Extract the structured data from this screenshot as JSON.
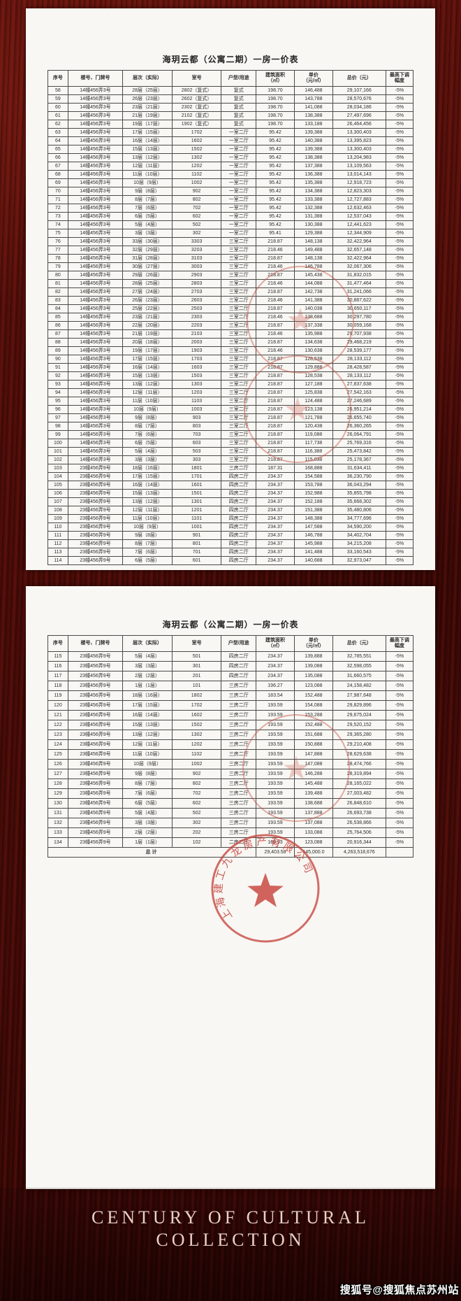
{
  "page1": {
    "title": "海玥云都（公寓二期）一房一价表",
    "columns": [
      "序号",
      "楼号、门牌号",
      "层次（实际）",
      "室号",
      "户型/用途",
      "建筑面积\n（㎡）",
      "单价\n（元/㎡）",
      "总价（元）",
      "最高下调\n幅度"
    ],
    "rows": [
      [
        "58",
        "14幢456弄3号",
        "28层（25层）",
        "2802（复式）",
        "复式",
        "198.70",
        "146,488",
        "29,107,166",
        "-5%"
      ],
      [
        "59",
        "14幢456弄3号",
        "26层（23层）",
        "2602（复式）",
        "复式",
        "198.70",
        "143,788",
        "28,570,676",
        "-5%"
      ],
      [
        "60",
        "14幢456弄3号",
        "23层（21层）",
        "2302（复式）",
        "复式",
        "198.70",
        "141,088",
        "28,034,186",
        "-5%"
      ],
      [
        "61",
        "14幢456弄3号",
        "21层（19层）",
        "2102（复式）",
        "复式",
        "198.70",
        "138,388",
        "27,497,696",
        "-5%"
      ],
      [
        "62",
        "14幢456弄3号",
        "19层（17层）",
        "1902（复式）",
        "复式",
        "198.70",
        "133,188",
        "26,464,456",
        "-5%"
      ],
      [
        "63",
        "14幢456弄3号",
        "17层（15层）",
        "1702",
        "一室二厅",
        "95.42",
        "139,388",
        "13,300,403",
        "-5%"
      ],
      [
        "64",
        "14幢456弄3号",
        "16层（14层）",
        "1602",
        "一室二厅",
        "95.42",
        "140,388",
        "13,395,823",
        "-5%"
      ],
      [
        "65",
        "14幢456弄3号",
        "15层（13层）",
        "1502",
        "一室二厅",
        "95.42",
        "139,388",
        "13,300,403",
        "-5%"
      ],
      [
        "66",
        "14幢456弄3号",
        "13层（12层）",
        "1302",
        "一室二厅",
        "95.42",
        "138,388",
        "13,204,983",
        "-5%"
      ],
      [
        "67",
        "14幢456弄3号",
        "12层（11层）",
        "1202",
        "一室二厅",
        "95.42",
        "137,388",
        "13,109,563",
        "-5%"
      ],
      [
        "68",
        "14幢456弄3号",
        "11层（10层）",
        "1102",
        "一室二厅",
        "95.42",
        "136,388",
        "13,014,143",
        "-5%"
      ],
      [
        "69",
        "14幢456弄3号",
        "10层（9层）",
        "1002",
        "一室二厅",
        "95.42",
        "135,388",
        "12,918,723",
        "-5%"
      ],
      [
        "70",
        "14幢456弄3号",
        "9层（8层）",
        "902",
        "一室二厅",
        "95.42",
        "134,388",
        "12,823,303",
        "-5%"
      ],
      [
        "71",
        "14幢456弄3号",
        "8层（7层）",
        "802",
        "一室二厅",
        "95.42",
        "133,388",
        "12,727,883",
        "-5%"
      ],
      [
        "72",
        "14幢456弄3号",
        "7层（6层）",
        "702",
        "一室二厅",
        "95.42",
        "132,388",
        "12,632,463",
        "-5%"
      ],
      [
        "73",
        "14幢456弄3号",
        "6层（5层）",
        "602",
        "一室二厅",
        "95.42",
        "131,388",
        "12,537,043",
        "-5%"
      ],
      [
        "74",
        "14幢456弄3号",
        "5层（4层）",
        "502",
        "一室二厅",
        "95.42",
        "130,388",
        "12,441,623",
        "-5%"
      ],
      [
        "75",
        "14幢456弄3号",
        "3层（3层）",
        "302",
        "一室二厅",
        "95.41",
        "129,388",
        "12,344,909",
        "-5%"
      ],
      [
        "76",
        "14幢456弄3号",
        "33层（30层）",
        "3303",
        "三室二厅",
        "218.87",
        "148,138",
        "32,422,964",
        "-5%"
      ],
      [
        "77",
        "14幢456弄3号",
        "32层（29层）",
        "3203",
        "三室二厅",
        "218.46",
        "149,488",
        "32,657,148",
        "-5%"
      ],
      [
        "78",
        "14幢456弄3号",
        "31层（28层）",
        "3103",
        "三室二厅",
        "218.87",
        "148,138",
        "32,422,964",
        "-5%"
      ],
      [
        "79",
        "14幢456弄3号",
        "30层（27层）",
        "3003",
        "三室二厅",
        "218.46",
        "146,788",
        "32,067,306",
        "-5%"
      ],
      [
        "80",
        "14幢456弄3号",
        "29层（26层）",
        "2903",
        "三室二厅",
        "218.87",
        "145,438",
        "31,832,015",
        "-5%"
      ],
      [
        "81",
        "14幢456弄3号",
        "28层（25层）",
        "2803",
        "三室二厅",
        "218.46",
        "144,088",
        "31,477,464",
        "-5%"
      ],
      [
        "82",
        "14幢456弄3号",
        "27层（24层）",
        "2703",
        "三室二厅",
        "218.87",
        "142,738",
        "31,241,066",
        "-5%"
      ],
      [
        "83",
        "14幢456弄3号",
        "26层（23层）",
        "2603",
        "三室二厅",
        "218.46",
        "141,388",
        "30,887,622",
        "-5%"
      ],
      [
        "84",
        "14幢456弄3号",
        "25层（22层）",
        "2503",
        "三室二厅",
        "218.87",
        "140,038",
        "30,650,117",
        "-5%"
      ],
      [
        "85",
        "14幢456弄3号",
        "23层（21层）",
        "2303",
        "三室二厅",
        "218.46",
        "138,688",
        "30,297,780",
        "-5%"
      ],
      [
        "86",
        "14幢456弄3号",
        "22层（20层）",
        "2203",
        "三室二厅",
        "218.87",
        "137,338",
        "30,059,168",
        "-5%"
      ],
      [
        "87",
        "14幢456弄3号",
        "21层（19层）",
        "2103",
        "三室二厅",
        "218.46",
        "135,988",
        "29,707,938",
        "-5%"
      ],
      [
        "88",
        "14幢456弄3号",
        "20层（18层）",
        "2003",
        "三室二厅",
        "218.87",
        "134,638",
        "29,468,219",
        "-5%"
      ],
      [
        "89",
        "14幢456弄3号",
        "19层（17层）",
        "1903",
        "三室二厅",
        "218.46",
        "130,638",
        "28,539,177",
        "-5%"
      ],
      [
        "90",
        "14幢456弄3号",
        "17层（15层）",
        "1703",
        "三室二厅",
        "218.87",
        "128,538",
        "28,133,112",
        "-5%"
      ],
      [
        "91",
        "14幢456弄3号",
        "16层（14层）",
        "1603",
        "三室二厅",
        "218.87",
        "129,888",
        "28,428,587",
        "-5%"
      ],
      [
        "92",
        "14幢456弄3号",
        "15层（13层）",
        "1503",
        "三室二厅",
        "218.87",
        "128,538",
        "28,133,112",
        "-5%"
      ],
      [
        "93",
        "14幢456弄3号",
        "13层（12层）",
        "1303",
        "三室二厅",
        "218.87",
        "127,188",
        "27,837,638",
        "-5%"
      ],
      [
        "94",
        "14幢456弄3号",
        "12层（11层）",
        "1203",
        "三室二厅",
        "218.87",
        "125,838",
        "27,542,163",
        "-5%"
      ],
      [
        "95",
        "14幢456弄3号",
        "11层（10层）",
        "1103",
        "三室二厅",
        "218.87",
        "124,488",
        "27,246,689",
        "-5%"
      ],
      [
        "96",
        "14幢456弄3号",
        "10层（9层）",
        "1003",
        "三室二厅",
        "218.87",
        "123,138",
        "26,951,214",
        "-5%"
      ],
      [
        "97",
        "14幢456弄3号",
        "9层（8层）",
        "903",
        "三室二厅",
        "218.87",
        "121,788",
        "26,655,740",
        "-5%"
      ],
      [
        "98",
        "14幢456弄3号",
        "8层（7层）",
        "803",
        "三室二厅",
        "218.87",
        "120,438",
        "26,360,265",
        "-5%"
      ],
      [
        "99",
        "14幢456弄3号",
        "7层（6层）",
        "703",
        "三室二厅",
        "218.87",
        "119,088",
        "26,064,791",
        "-5%"
      ],
      [
        "100",
        "14幢456弄3号",
        "6层（5层）",
        "603",
        "三室二厅",
        "218.87",
        "117,738",
        "25,769,316",
        "-5%"
      ],
      [
        "101",
        "14幢456弄3号",
        "5层（4层）",
        "503",
        "三室二厅",
        "218.87",
        "116,388",
        "25,473,842",
        "-5%"
      ],
      [
        "102",
        "14幢456弄3号",
        "3层（3层）",
        "303",
        "三室二厅",
        "218.87",
        "115,038",
        "25,178,367",
        "-5%"
      ],
      [
        "103",
        "23幢456弄9号",
        "18层（16层）",
        "1801",
        "三房二厅",
        "187.31",
        "168,888",
        "31,634,411",
        "-5%"
      ],
      [
        "104",
        "23幢456弄9号",
        "17层（15层）",
        "1701",
        "四房二厅",
        "234.37",
        "154,588",
        "36,230,790",
        "-5%"
      ],
      [
        "105",
        "23幢456弄9号",
        "16层（14层）",
        "1601",
        "四房二厅",
        "234.37",
        "153,788",
        "36,043,294",
        "-5%"
      ],
      [
        "106",
        "23幢456弄9号",
        "15层（13层）",
        "1501",
        "四房二厅",
        "234.37",
        "152,988",
        "35,855,798",
        "-5%"
      ],
      [
        "107",
        "23幢456弄9号",
        "13层（12层）",
        "1301",
        "四房二厅",
        "234.37",
        "152,188",
        "35,668,302",
        "-5%"
      ],
      [
        "108",
        "23幢456弄9号",
        "12层（11层）",
        "1201",
        "四房二厅",
        "234.37",
        "151,388",
        "35,480,806",
        "-5%"
      ],
      [
        "109",
        "23幢456弄9号",
        "11层（10层）",
        "1101",
        "四房二厅",
        "234.37",
        "148,388",
        "34,777,696",
        "-5%"
      ],
      [
        "110",
        "23幢456弄9号",
        "10层（9层）",
        "1001",
        "四房二厅",
        "234.37",
        "147,588",
        "34,590,200",
        "-5%"
      ],
      [
        "111",
        "23幢456弄9号",
        "9层（8层）",
        "901",
        "四房二厅",
        "234.37",
        "146,788",
        "34,402,704",
        "-5%"
      ],
      [
        "112",
        "23幢456弄9号",
        "8层（7层）",
        "801",
        "四房二厅",
        "234.37",
        "145,988",
        "34,215,208",
        "-5%"
      ],
      [
        "113",
        "23幢456弄9号",
        "7层（6层）",
        "701",
        "四房二厅",
        "234.37",
        "141,488",
        "33,160,543",
        "-5%"
      ],
      [
        "114",
        "23幢456弄9号",
        "6层（5层）",
        "601",
        "四房二厅",
        "234.37",
        "140,688",
        "32,973,047",
        "-5%"
      ]
    ]
  },
  "page2": {
    "title": "海玥云都（公寓二期）一房一价表",
    "columns": [
      "序号",
      "楼号、门牌号",
      "层次（实际）",
      "室号",
      "户型/用途",
      "建筑面积\n（㎡）",
      "单价\n（元/㎡）",
      "总价（元）",
      "最高下调\n幅度"
    ],
    "rows": [
      [
        "115",
        "23幢456弄9号",
        "5层（4层）",
        "501",
        "四房二厅",
        "234.37",
        "139,888",
        "32,785,551",
        "-5%"
      ],
      [
        "116",
        "23幢456弄9号",
        "3层（3层）",
        "301",
        "四房二厅",
        "234.37",
        "139,088",
        "32,598,055",
        "-5%"
      ],
      [
        "117",
        "23幢456弄9号",
        "2层（2层）",
        "201",
        "四房二厅",
        "234.37",
        "135,088",
        "31,660,575",
        "-5%"
      ],
      [
        "118",
        "23幢456弄9号",
        "1层（1层）",
        "101",
        "三房二厅",
        "196.27",
        "123,088",
        "24,158,482",
        "-5%"
      ],
      [
        "119",
        "23幢456弄9号",
        "18层（16层）",
        "1802",
        "三房二厅",
        "183.54",
        "152,488",
        "27,987,648",
        "-5%"
      ],
      [
        "120",
        "23幢456弄9号",
        "17层（15层）",
        "1702",
        "三房二厅",
        "193.59",
        "154,088",
        "29,829,896",
        "-5%"
      ],
      [
        "121",
        "23幢456弄9号",
        "16层（14层）",
        "1602",
        "三房二厅",
        "193.59",
        "153,288",
        "29,675,024",
        "-5%"
      ],
      [
        "122",
        "23幢456弄9号",
        "15层（13层）",
        "1502",
        "三房二厅",
        "193.59",
        "152,488",
        "29,520,152",
        "-5%"
      ],
      [
        "123",
        "23幢456弄9号",
        "13层（12层）",
        "1302",
        "三房二厅",
        "193.59",
        "151,688",
        "29,365,280",
        "-5%"
      ],
      [
        "124",
        "23幢456弄9号",
        "12层（11层）",
        "1202",
        "三房二厅",
        "193.59",
        "150,888",
        "29,210,408",
        "-5%"
      ],
      [
        "125",
        "23幢456弄9号",
        "11层（10层）",
        "1102",
        "三房二厅",
        "193.59",
        "147,888",
        "28,629,638",
        "-5%"
      ],
      [
        "126",
        "23幢456弄9号",
        "10层（9层）",
        "1002",
        "三房二厅",
        "193.59",
        "147,088",
        "28,474,766",
        "-5%"
      ],
      [
        "127",
        "23幢456弄9号",
        "9层（8层）",
        "902",
        "三房二厅",
        "193.59",
        "146,288",
        "28,319,894",
        "-5%"
      ],
      [
        "128",
        "23幢456弄9号",
        "8层（7层）",
        "802",
        "三房二厅",
        "193.59",
        "145,488",
        "28,165,022",
        "-5%"
      ],
      [
        "129",
        "23幢456弄9号",
        "7层（6层）",
        "702",
        "三房二厅",
        "193.59",
        "139,488",
        "27,003,482",
        "-5%"
      ],
      [
        "130",
        "23幢456弄9号",
        "6层（5层）",
        "602",
        "三房二厅",
        "193.59",
        "138,688",
        "26,848,610",
        "-5%"
      ],
      [
        "131",
        "23幢456弄9号",
        "5层（4层）",
        "502",
        "三房二厅",
        "193.59",
        "137,888",
        "26,693,738",
        "-5%"
      ],
      [
        "132",
        "23幢456弄9号",
        "3层（3层）",
        "302",
        "三房二厅",
        "193.59",
        "137,088",
        "26,538,866",
        "-5%"
      ],
      [
        "133",
        "23幢456弄9号",
        "2层（2层）",
        "202",
        "三房二厅",
        "193.59",
        "133,088",
        "25,764,506",
        "-5%"
      ],
      [
        "134",
        "23幢456弄9号",
        "1层（1层）",
        "102",
        "二房二厅",
        "169.93",
        "123,088",
        "20,916,344",
        "-5%"
      ]
    ],
    "total_row": {
      "label": "总计",
      "area": "29,403.58",
      "unit_price": "145,000.0",
      "total_price": "4,263,518,676"
    }
  },
  "seal": {
    "company": "上海建工九龙房产有限公司"
  },
  "footer": {
    "line1": "CENTURY OF CULTURAL",
    "line2": "COLLECTION"
  },
  "watermark": "搜狐号@搜狐焦点苏州站"
}
